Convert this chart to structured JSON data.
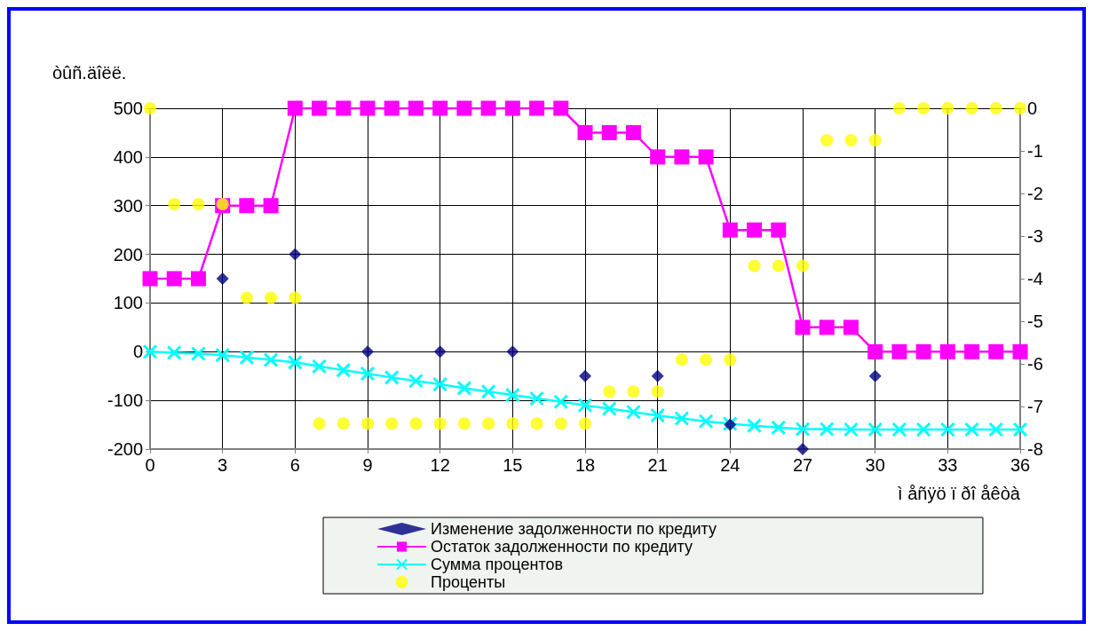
{
  "chart_data": {
    "type": "line",
    "xlabel": "ì åñÿö ï ðî åêòà",
    "ylabel": "òûñ.äîëë.",
    "x": [
      0,
      1,
      2,
      3,
      4,
      5,
      6,
      7,
      8,
      9,
      10,
      11,
      12,
      13,
      14,
      15,
      16,
      17,
      18,
      19,
      20,
      21,
      22,
      23,
      24,
      25,
      26,
      27,
      28,
      29,
      30,
      31,
      32,
      33,
      34,
      35,
      36
    ],
    "xlim": [
      0,
      36
    ],
    "xticks": [
      0,
      3,
      6,
      9,
      12,
      15,
      18,
      21,
      24,
      27,
      30,
      33,
      36
    ],
    "ylim": [
      -200,
      500
    ],
    "yticks": [
      -200,
      -100,
      0,
      100,
      200,
      300,
      400,
      500
    ],
    "y2lim": [
      -8,
      0
    ],
    "y2ticks": [
      -8,
      -7,
      -6,
      -5,
      -4,
      -3,
      -2,
      -1,
      0
    ],
    "grid": true,
    "legend": "bottom",
    "series": [
      {
        "name": "Изменение задолженности по кредиту",
        "type": "scatter",
        "marker": "diamond",
        "color": "#000080",
        "x": [
          3,
          6,
          9,
          12,
          15,
          18,
          21,
          24,
          27,
          30
        ],
        "values": [
          150,
          200,
          0,
          0,
          0,
          -50,
          -50,
          -150,
          -200,
          -50
        ]
      },
      {
        "name": "Остаток задолженности по кредиту",
        "marker": "square",
        "line_style": "solid",
        "color": "#ff00ff",
        "values": [
          150,
          150,
          150,
          300,
          300,
          300,
          500,
          500,
          500,
          500,
          500,
          500,
          500,
          500,
          500,
          500,
          500,
          500,
          450,
          450,
          450,
          400,
          400,
          400,
          250,
          250,
          250,
          50,
          50,
          50,
          0,
          0,
          0,
          0,
          0,
          0,
          0
        ]
      },
      {
        "name": "Сумма процентов",
        "marker": "cross",
        "line_style": "solid",
        "color": "#00ffff",
        "values": [
          0,
          -2,
          -4,
          -7,
          -12,
          -17,
          -22,
          -30,
          -38,
          -45,
          -53,
          -60,
          -67,
          -75,
          -82,
          -89,
          -96,
          -103,
          -110,
          -117,
          -124,
          -131,
          -137,
          -143,
          -148,
          -152,
          -156,
          -159,
          -159,
          -160,
          -160,
          -160,
          -160,
          -160,
          -160,
          -160,
          -160
        ]
      },
      {
        "name": "Проценты",
        "type": "scatter",
        "marker": "circle",
        "axis": "y2",
        "color": "#ffff00",
        "values": [
          0,
          -2.25,
          -2.25,
          -2.25,
          -4.45,
          -4.45,
          -4.45,
          -7.4,
          -7.4,
          -7.4,
          -7.4,
          -7.4,
          -7.4,
          -7.4,
          -7.4,
          -7.4,
          -7.4,
          -7.4,
          -7.4,
          -6.65,
          -6.65,
          -6.65,
          -5.9,
          -5.9,
          -5.9,
          -3.7,
          -3.7,
          -3.7,
          -0.75,
          -0.75,
          -0.75,
          0,
          0,
          0,
          0,
          0,
          0
        ]
      }
    ]
  }
}
